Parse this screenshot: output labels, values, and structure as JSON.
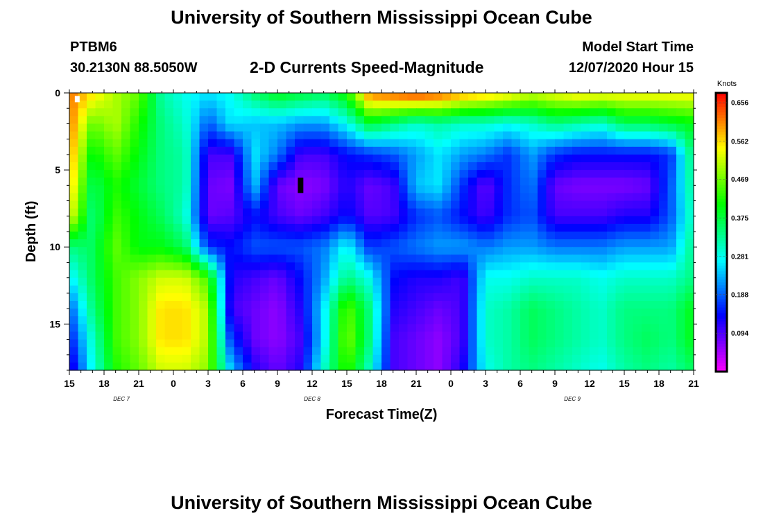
{
  "page": {
    "title_top": "University of Southern Mississippi Ocean Cube",
    "title_bottom": "University of Southern Mississippi Ocean Cube",
    "station_id": "PTBM6",
    "station_coords": "30.2130N 88.5050W",
    "product": "2-D Currents Speed-Magnitude",
    "model_start_label": "Model Start Time",
    "model_start_value": "12/07/2020 Hour 15"
  },
  "chart_data": {
    "type": "heatmap",
    "title": "2-D Currents Speed-Magnitude",
    "xlabel": "Forecast Time(Z)",
    "ylabel": "Depth (ft)",
    "x_ticks": [
      "15",
      "18",
      "21",
      "0",
      "3",
      "6",
      "9",
      "12",
      "15",
      "18",
      "21",
      "0",
      "3",
      "6",
      "9",
      "12",
      "15",
      "18",
      "21"
    ],
    "x_day_labels": [
      {
        "label": "DEC 7",
        "at_hour": 4.5
      },
      {
        "label": "DEC 8",
        "at_hour": 21
      },
      {
        "label": "DEC 9",
        "at_hour": 43.5
      }
    ],
    "xlim_hours": [
      0,
      54
    ],
    "y_ticks": [
      0,
      5,
      10,
      15
    ],
    "ylim_ft": [
      0,
      18
    ],
    "colorbar": {
      "label": "Knots",
      "ticks": [
        "0.656",
        "0.562",
        "0.469",
        "0.375",
        "0.281",
        "0.188",
        "0.094"
      ],
      "tick_values": [
        0.656,
        0.562,
        0.469,
        0.375,
        0.281,
        0.188,
        0.094
      ],
      "range": [
        0.0,
        0.68
      ]
    },
    "time_hours": [
      0,
      2,
      4,
      6,
      8,
      10,
      12,
      14,
      16,
      18,
      20,
      22,
      24,
      26,
      28,
      30,
      32,
      34,
      36,
      38,
      40,
      42,
      44,
      46,
      48,
      50,
      52,
      54
    ],
    "depth_ft": [
      0,
      2,
      4,
      6,
      8,
      10,
      12,
      14,
      16,
      18
    ],
    "values_knots": [
      [
        0.62,
        0.56,
        0.5,
        0.46,
        0.32,
        0.28,
        0.26,
        0.28,
        0.35,
        0.4,
        0.38,
        0.36,
        0.42,
        0.62,
        0.64,
        0.66,
        0.64,
        0.6,
        0.58,
        0.56,
        0.52,
        0.54,
        0.56,
        0.55,
        0.55,
        0.55,
        0.55,
        0.55
      ],
      [
        0.62,
        0.46,
        0.5,
        0.42,
        0.34,
        0.3,
        0.18,
        0.26,
        0.24,
        0.24,
        0.22,
        0.22,
        0.28,
        0.38,
        0.34,
        0.3,
        0.32,
        0.3,
        0.3,
        0.28,
        0.3,
        0.34,
        0.32,
        0.3,
        0.36,
        0.36,
        0.38,
        0.4
      ],
      [
        0.6,
        0.4,
        0.46,
        0.4,
        0.34,
        0.32,
        0.1,
        0.1,
        0.26,
        0.2,
        0.1,
        0.1,
        0.14,
        0.16,
        0.18,
        0.22,
        0.26,
        0.22,
        0.2,
        0.16,
        0.22,
        0.16,
        0.14,
        0.14,
        0.14,
        0.14,
        0.16,
        0.36
      ],
      [
        0.58,
        0.36,
        0.42,
        0.38,
        0.34,
        0.32,
        0.08,
        0.07,
        0.24,
        0.08,
        0.06,
        0.07,
        0.12,
        0.08,
        0.1,
        0.24,
        0.26,
        0.16,
        0.08,
        0.16,
        0.2,
        0.08,
        0.07,
        0.07,
        0.07,
        0.08,
        0.18,
        0.34
      ],
      [
        0.54,
        0.34,
        0.44,
        0.4,
        0.36,
        0.3,
        0.08,
        0.09,
        0.14,
        0.1,
        0.08,
        0.1,
        0.14,
        0.09,
        0.1,
        0.16,
        0.18,
        0.14,
        0.1,
        0.16,
        0.18,
        0.1,
        0.1,
        0.1,
        0.12,
        0.12,
        0.18,
        0.32
      ],
      [
        0.34,
        0.36,
        0.46,
        0.4,
        0.4,
        0.36,
        0.16,
        0.14,
        0.18,
        0.18,
        0.18,
        0.2,
        0.28,
        0.16,
        0.18,
        0.2,
        0.22,
        0.22,
        0.2,
        0.22,
        0.22,
        0.2,
        0.2,
        0.2,
        0.22,
        0.22,
        0.22,
        0.34
      ],
      [
        0.26,
        0.36,
        0.44,
        0.48,
        0.52,
        0.52,
        0.44,
        0.12,
        0.1,
        0.08,
        0.14,
        0.22,
        0.34,
        0.28,
        0.14,
        0.12,
        0.12,
        0.1,
        0.28,
        0.28,
        0.3,
        0.3,
        0.3,
        0.28,
        0.3,
        0.3,
        0.3,
        0.34
      ],
      [
        0.18,
        0.34,
        0.44,
        0.48,
        0.56,
        0.56,
        0.5,
        0.1,
        0.08,
        0.06,
        0.12,
        0.26,
        0.46,
        0.34,
        0.12,
        0.1,
        0.08,
        0.1,
        0.3,
        0.32,
        0.36,
        0.34,
        0.32,
        0.3,
        0.34,
        0.34,
        0.34,
        0.4
      ],
      [
        0.14,
        0.3,
        0.44,
        0.48,
        0.56,
        0.56,
        0.5,
        0.16,
        0.08,
        0.06,
        0.1,
        0.26,
        0.48,
        0.34,
        0.1,
        0.08,
        0.06,
        0.1,
        0.3,
        0.32,
        0.36,
        0.34,
        0.32,
        0.3,
        0.34,
        0.36,
        0.34,
        0.4
      ],
      [
        0.1,
        0.28,
        0.42,
        0.46,
        0.52,
        0.52,
        0.48,
        0.24,
        0.12,
        0.08,
        0.12,
        0.3,
        0.44,
        0.3,
        0.1,
        0.08,
        0.06,
        0.12,
        0.28,
        0.32,
        0.34,
        0.32,
        0.3,
        0.28,
        0.32,
        0.34,
        0.32,
        0.36
      ]
    ],
    "markers": [
      {
        "name": "white-marker",
        "at_hour": 0.5,
        "depth_ft": 0.4,
        "color": "#ffffff"
      },
      {
        "name": "black-marker",
        "at_hour": 20,
        "depth_ft": 6,
        "color": "#000000"
      }
    ]
  }
}
